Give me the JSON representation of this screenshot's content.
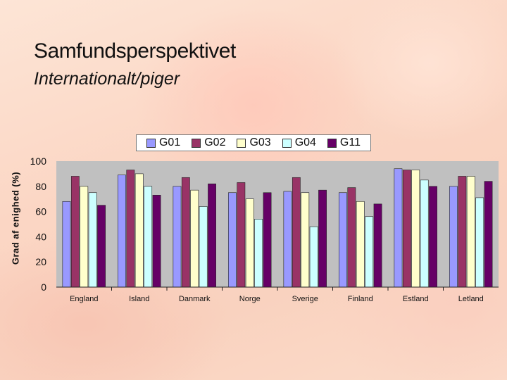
{
  "slide": {
    "title": "Samfundsperspektivet",
    "subtitle": "Internationalt/piger"
  },
  "colors": {
    "plot_background": "#c0c0c0",
    "G01": "#9999ff",
    "G02": "#993366",
    "G03": "#ffffcc",
    "G04": "#ccffff",
    "G11": "#660066"
  },
  "chart_data": {
    "type": "bar",
    "ylabel": "Grad af enighed (%)",
    "xlabel": "",
    "ylim": [
      0,
      100
    ],
    "yticks": [
      0,
      20,
      40,
      60,
      80,
      100
    ],
    "grid": false,
    "legend_position": "top",
    "categories": [
      "England",
      "Island",
      "Danmark",
      "Norge",
      "Sverige",
      "Finland",
      "Estland",
      "Letland"
    ],
    "series": [
      {
        "name": "G01",
        "color": "#9999ff",
        "values": [
          68,
          89,
          80,
          75,
          76,
          75,
          94,
          80
        ]
      },
      {
        "name": "G02",
        "color": "#993366",
        "values": [
          88,
          93,
          87,
          83,
          87,
          79,
          93,
          88
        ]
      },
      {
        "name": "G03",
        "color": "#ffffcc",
        "values": [
          80,
          90,
          77,
          70,
          75,
          68,
          93,
          88
        ]
      },
      {
        "name": "G04",
        "color": "#ccffff",
        "values": [
          75,
          80,
          64,
          54,
          48,
          56,
          85,
          71
        ]
      },
      {
        "name": "G11",
        "color": "#660066",
        "values": [
          65,
          73,
          82,
          75,
          77,
          66,
          80,
          84
        ]
      }
    ]
  }
}
